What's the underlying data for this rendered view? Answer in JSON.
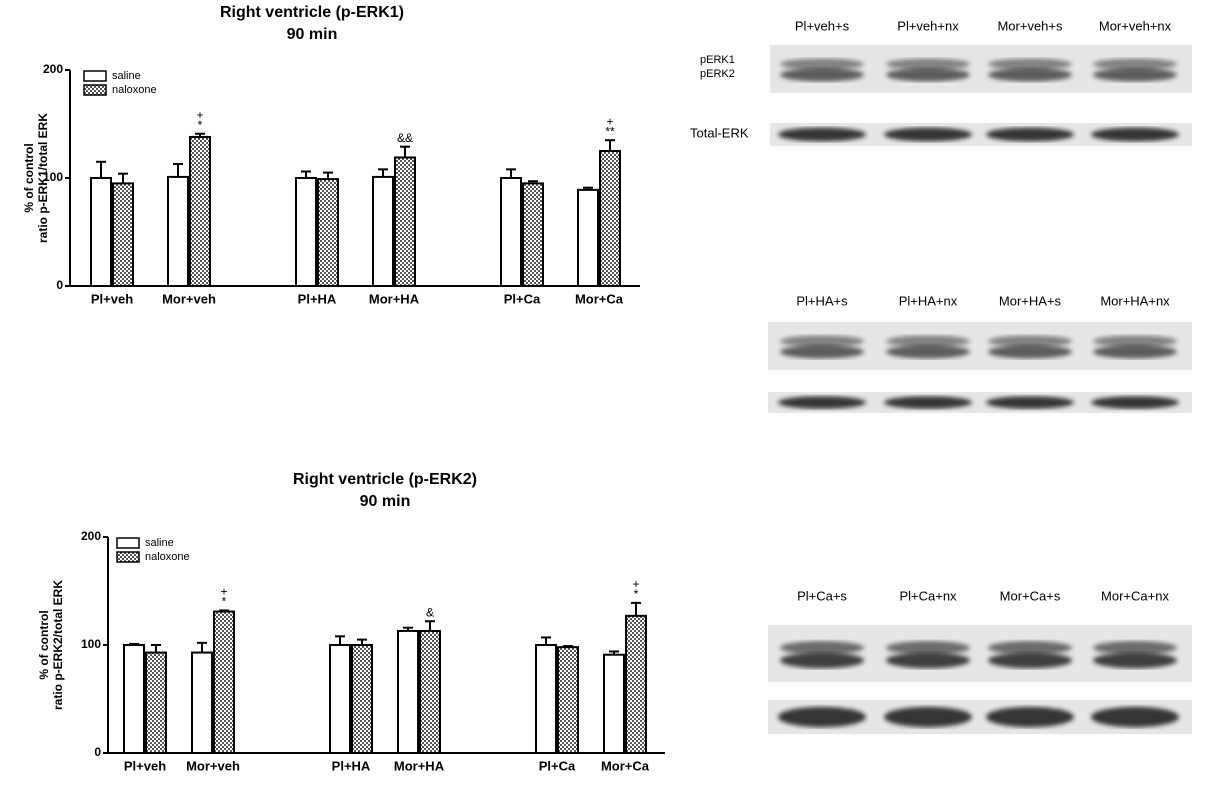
{
  "chart_data": [
    {
      "type": "bar",
      "title": "Right ventricle (p-ERK1)",
      "subtitle": "90 min",
      "y_label": [
        "% of control",
        "ratio p-ERK1/total ERK"
      ],
      "categories": [
        "Pl+veh",
        "Mor+veh",
        "Pl+HA",
        "Mor+HA",
        "Pl+Ca",
        "Mor+Ca"
      ],
      "series": [
        {
          "name": "saline",
          "color": "#ffffff",
          "pattern": "solid",
          "values": [
            100,
            101,
            100,
            101,
            100,
            89
          ],
          "errors": [
            15,
            12,
            6,
            7,
            8,
            2
          ],
          "significance": [
            null,
            null,
            null,
            null,
            null,
            null
          ]
        },
        {
          "name": "naloxone",
          "color": "#555555",
          "pattern": "checker",
          "values": [
            95,
            138,
            99,
            119,
            95,
            125
          ],
          "errors": [
            9,
            3,
            6,
            10,
            2,
            10
          ],
          "significance": [
            null,
            [
              "+",
              "*"
            ],
            null,
            [
              "&&"
            ],
            null,
            [
              "+",
              "**"
            ]
          ]
        }
      ],
      "ylim": [
        0,
        200
      ],
      "yticks": [
        0,
        100,
        200
      ],
      "legend": "top-left"
    },
    {
      "type": "bar",
      "title": "Right ventricle (p-ERK2)",
      "subtitle": "90 min",
      "y_label": [
        "% of control",
        "ratio p-ERK2/total ERK"
      ],
      "categories": [
        "Pl+veh",
        "Mor+veh",
        "Pl+HA",
        "Mor+HA",
        "Pl+Ca",
        "Mor+Ca"
      ],
      "series": [
        {
          "name": "saline",
          "color": "#ffffff",
          "pattern": "solid",
          "values": [
            100,
            93,
            100,
            113,
            100,
            91
          ],
          "errors": [
            1,
            9,
            8,
            3,
            7,
            3
          ],
          "significance": [
            null,
            null,
            null,
            null,
            null,
            null
          ]
        },
        {
          "name": "naloxone",
          "color": "#555555",
          "pattern": "checker",
          "values": [
            93,
            131,
            100,
            113,
            98,
            127
          ],
          "errors": [
            7,
            1,
            5,
            9,
            1,
            12
          ],
          "significance": [
            null,
            [
              "+",
              "*"
            ],
            null,
            [
              "&"
            ],
            null,
            [
              "+",
              "*"
            ]
          ]
        }
      ],
      "ylim": [
        0,
        200
      ],
      "yticks": [
        0,
        100,
        200
      ],
      "legend": "top-left"
    }
  ],
  "blots": [
    {
      "lanes": [
        "Pl+veh+s",
        "Pl+veh+nx",
        "Mor+veh+s",
        "Mor+veh+nx"
      ],
      "band_labels": [
        "pERK1",
        "pERK2"
      ],
      "total_label": "Total-ERK"
    },
    {
      "lanes": [
        "Pl+HA+s",
        "Pl+HA+nx",
        "Mor+HA+s",
        "Mor+HA+nx"
      ]
    },
    {
      "lanes": [
        "Pl+Ca+s",
        "Pl+Ca+nx",
        "Mor+Ca+s",
        "Mor+Ca+nx"
      ]
    }
  ]
}
